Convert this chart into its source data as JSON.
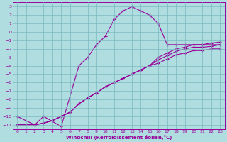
{
  "xlabel": "Windchill (Refroidissement éolien,°C)",
  "bg_color": "#b0dde0",
  "grid_color": "#7ab8c0",
  "line_color": "#990099",
  "xlim": [
    -0.5,
    23.5
  ],
  "ylim": [
    -11.5,
    3.5
  ],
  "xticks": [
    0,
    1,
    2,
    3,
    4,
    5,
    6,
    7,
    8,
    9,
    10,
    11,
    12,
    13,
    14,
    15,
    16,
    17,
    18,
    19,
    20,
    21,
    22,
    23
  ],
  "yticks": [
    3,
    2,
    1,
    0,
    -1,
    -2,
    -3,
    -4,
    -5,
    -6,
    -7,
    -8,
    -9,
    -10,
    -11
  ],
  "line_main_x": [
    0,
    2,
    3,
    5,
    7,
    8,
    9,
    10,
    11,
    12,
    13,
    14,
    15,
    16,
    17,
    18,
    19,
    20,
    21,
    22,
    23
  ],
  "line_main_y": [
    -10,
    -11,
    -10,
    -11.2,
    -4.0,
    -3.0,
    -1.5,
    -0.5,
    1.5,
    2.5,
    3.0,
    2.5,
    2.0,
    1.0,
    -1.5,
    -1.5,
    -1.5,
    -1.5,
    -1.5,
    -1.5,
    -1.5
  ],
  "line_diag1_x": [
    0,
    2,
    3,
    4,
    5,
    6,
    7,
    8,
    9,
    10,
    11,
    12,
    13,
    14,
    15,
    16,
    17,
    18,
    19,
    20,
    21,
    22,
    23
  ],
  "line_diag1_y": [
    -11,
    -11,
    -10.8,
    -10.5,
    -10.0,
    -9.5,
    -8.5,
    -7.8,
    -7.2,
    -6.5,
    -6.0,
    -5.5,
    -5.0,
    -4.5,
    -4.0,
    -3.0,
    -2.5,
    -2.0,
    -1.8,
    -1.5,
    -1.5,
    -1.3,
    -1.2
  ],
  "line_diag2_x": [
    0,
    2,
    3,
    4,
    5,
    6,
    7,
    8,
    9,
    10,
    11,
    12,
    13,
    14,
    15,
    16,
    17,
    18,
    19,
    20,
    21,
    22,
    23
  ],
  "line_diag2_y": [
    -11,
    -11,
    -10.8,
    -10.5,
    -10.0,
    -9.5,
    -8.5,
    -7.8,
    -7.2,
    -6.5,
    -6.0,
    -5.5,
    -5.0,
    -4.5,
    -4.0,
    -3.3,
    -2.8,
    -2.3,
    -2.0,
    -1.8,
    -1.8,
    -1.7,
    -1.5
  ],
  "line_diag3_x": [
    0,
    2,
    3,
    4,
    5,
    6,
    7,
    8,
    9,
    10,
    11,
    12,
    13,
    14,
    15,
    16,
    17,
    18,
    19,
    20,
    21,
    22,
    23
  ],
  "line_diag3_y": [
    -11,
    -11,
    -10.8,
    -10.5,
    -10.0,
    -9.5,
    -8.5,
    -7.8,
    -7.2,
    -6.5,
    -6.0,
    -5.5,
    -5.0,
    -4.5,
    -4.0,
    -3.7,
    -3.2,
    -2.7,
    -2.5,
    -2.2,
    -2.2,
    -2.0,
    -2.0
  ]
}
